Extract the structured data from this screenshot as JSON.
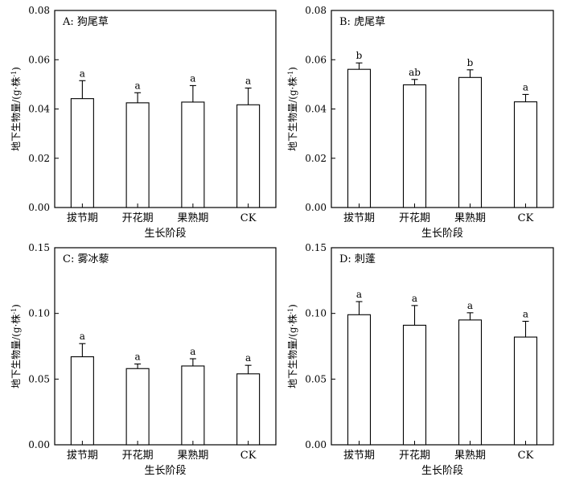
{
  "axis_titles": {
    "ylabel": "地下生物量/(g·株",
    "ylabel_sup": "-1",
    "ylabel_tail": ")",
    "xlabel": "生长阶段"
  },
  "chart_data": [
    {
      "type": "bar",
      "title": "A: 狗尾草",
      "categories": [
        "拔节期",
        "开花期",
        "果熟期",
        "CK"
      ],
      "values": [
        0.0442,
        0.0425,
        0.0428,
        0.0417
      ],
      "errors": [
        0.0073,
        0.0041,
        0.0067,
        0.0068
      ],
      "letters": [
        "a",
        "a",
        "a",
        "a"
      ],
      "ylim": [
        0,
        0.08
      ],
      "yticks": [
        "0.00",
        "0.02",
        "0.04",
        "0.06",
        "0.08"
      ],
      "xlabel": "生长阶段",
      "ylabel": "地下生物量/(g·株-1)"
    },
    {
      "type": "bar",
      "title": "B: 虎尾草",
      "categories": [
        "拔节期",
        "开花期",
        "果熟期",
        "CK"
      ],
      "values": [
        0.0561,
        0.0498,
        0.0528,
        0.0429
      ],
      "errors": [
        0.0026,
        0.0022,
        0.0031,
        0.003
      ],
      "letters": [
        "b",
        "ab",
        "b",
        "a"
      ],
      "ylim": [
        0,
        0.08
      ],
      "yticks": [
        "0.00",
        "0.02",
        "0.04",
        "0.06",
        "0.08"
      ],
      "xlabel": "生长阶段",
      "ylabel": "地下生物量/(g·株-1)"
    },
    {
      "type": "bar",
      "title": "C: 雾冰藜",
      "categories": [
        "拔节期",
        "开花期",
        "果熟期",
        "CK"
      ],
      "values": [
        0.067,
        0.058,
        0.06,
        0.054
      ],
      "errors": [
        0.01,
        0.0035,
        0.0055,
        0.0065
      ],
      "letters": [
        "a",
        "a",
        "a",
        "a"
      ],
      "ylim": [
        0,
        0.15
      ],
      "yticks": [
        "0.00",
        "0.05",
        "0.10",
        "0.15"
      ],
      "xlabel": "生长阶段",
      "ylabel": "地下生物量/(g·株-1)"
    },
    {
      "type": "bar",
      "title": "D: 刺蓬",
      "categories": [
        "拔节期",
        "开花期",
        "果熟期",
        "CK"
      ],
      "values": [
        0.099,
        0.091,
        0.095,
        0.082
      ],
      "errors": [
        0.01,
        0.015,
        0.0055,
        0.012
      ],
      "letters": [
        "a",
        "a",
        "a",
        "a"
      ],
      "ylim": [
        0,
        0.15
      ],
      "yticks": [
        "0.00",
        "0.05",
        "0.10",
        "0.15"
      ],
      "xlabel": "生长阶段",
      "ylabel": "地下生物量/(g·株-1)"
    }
  ]
}
